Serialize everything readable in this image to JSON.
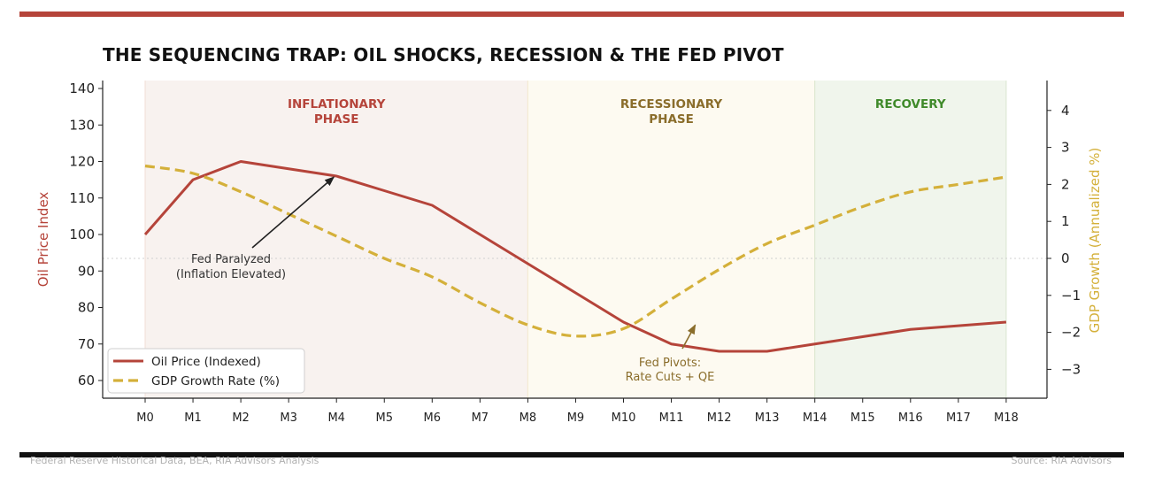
{
  "header": {
    "title": "THE SEQUENCING TRAP: OIL SHOCKS, RECESSION & THE FED PIVOT"
  },
  "footer": {
    "left": "Federal Reserve Historical Data, BEA, RIA Advisors Analysis",
    "right": "Source: RIA Advisors"
  },
  "colors": {
    "accent_bar": "#b5443a",
    "oil": "#b5443a",
    "gdp": "#d4b03a",
    "inflationary_shade": "#f8f2ef",
    "recessionary_shade": "#fdfaf1",
    "recovery_shade": "#f0f5ec",
    "inflationary_text": "#b5443a",
    "recessionary_text": "#8a6d2b",
    "recovery_text": "#3f8a2a",
    "fed_pivot_text": "#8a6d2b"
  },
  "chart_data": {
    "type": "line",
    "categories": [
      "M0",
      "M1",
      "M2",
      "M3",
      "M4",
      "M5",
      "M6",
      "M7",
      "M8",
      "M9",
      "M10",
      "M11",
      "M12",
      "M13",
      "M14",
      "M15",
      "M16",
      "M17",
      "M18"
    ],
    "series": [
      {
        "name": "Oil Price (Indexed)",
        "axis": "left",
        "style": "solid",
        "values": [
          100,
          115,
          120,
          118,
          116,
          112,
          108,
          100,
          92,
          84,
          76,
          70,
          68,
          68,
          70,
          72,
          74,
          75,
          76
        ]
      },
      {
        "name": "GDP Growth Rate (%)",
        "axis": "right",
        "style": "dashed",
        "values": [
          2.5,
          2.3,
          1.8,
          1.2,
          0.6,
          0.0,
          -0.5,
          -1.2,
          -1.8,
          -2.1,
          -1.9,
          -1.1,
          -0.3,
          0.4,
          0.9,
          1.4,
          1.8,
          2.0,
          2.2
        ]
      }
    ],
    "ylabel_left": "Oil Price Index",
    "ylabel_right": "GDP Growth (Annualized %)",
    "ylim_left": [
      55,
      142
    ],
    "ylim_right": [
      -3.8,
      4.8
    ],
    "yticks_left": [
      60,
      70,
      80,
      90,
      100,
      110,
      120,
      130,
      140
    ],
    "yticks_right": [
      -3,
      -2,
      -1,
      0,
      1,
      2,
      3,
      4
    ],
    "zero_reference_line": true,
    "legend_position": "bottom-left",
    "phases": [
      {
        "label_lines": [
          "INFLATIONARY",
          "PHASE"
        ],
        "start": 0,
        "end": 8
      },
      {
        "label_lines": [
          "RECESSIONARY",
          "PHASE"
        ],
        "start": 8,
        "end": 14
      },
      {
        "label_lines": [
          "RECOVERY"
        ],
        "start": 14,
        "end": 18
      }
    ],
    "annotations": [
      {
        "text_lines": [
          "Fed Paralyzed",
          "(Inflation Elevated)"
        ],
        "target_index": 4,
        "target_value": 115,
        "axis": "left"
      },
      {
        "text_lines": [
          "Fed Pivots:",
          "Rate Cuts + QE"
        ],
        "target_index": 11.5,
        "target_value": -1.8,
        "axis": "right"
      }
    ]
  }
}
